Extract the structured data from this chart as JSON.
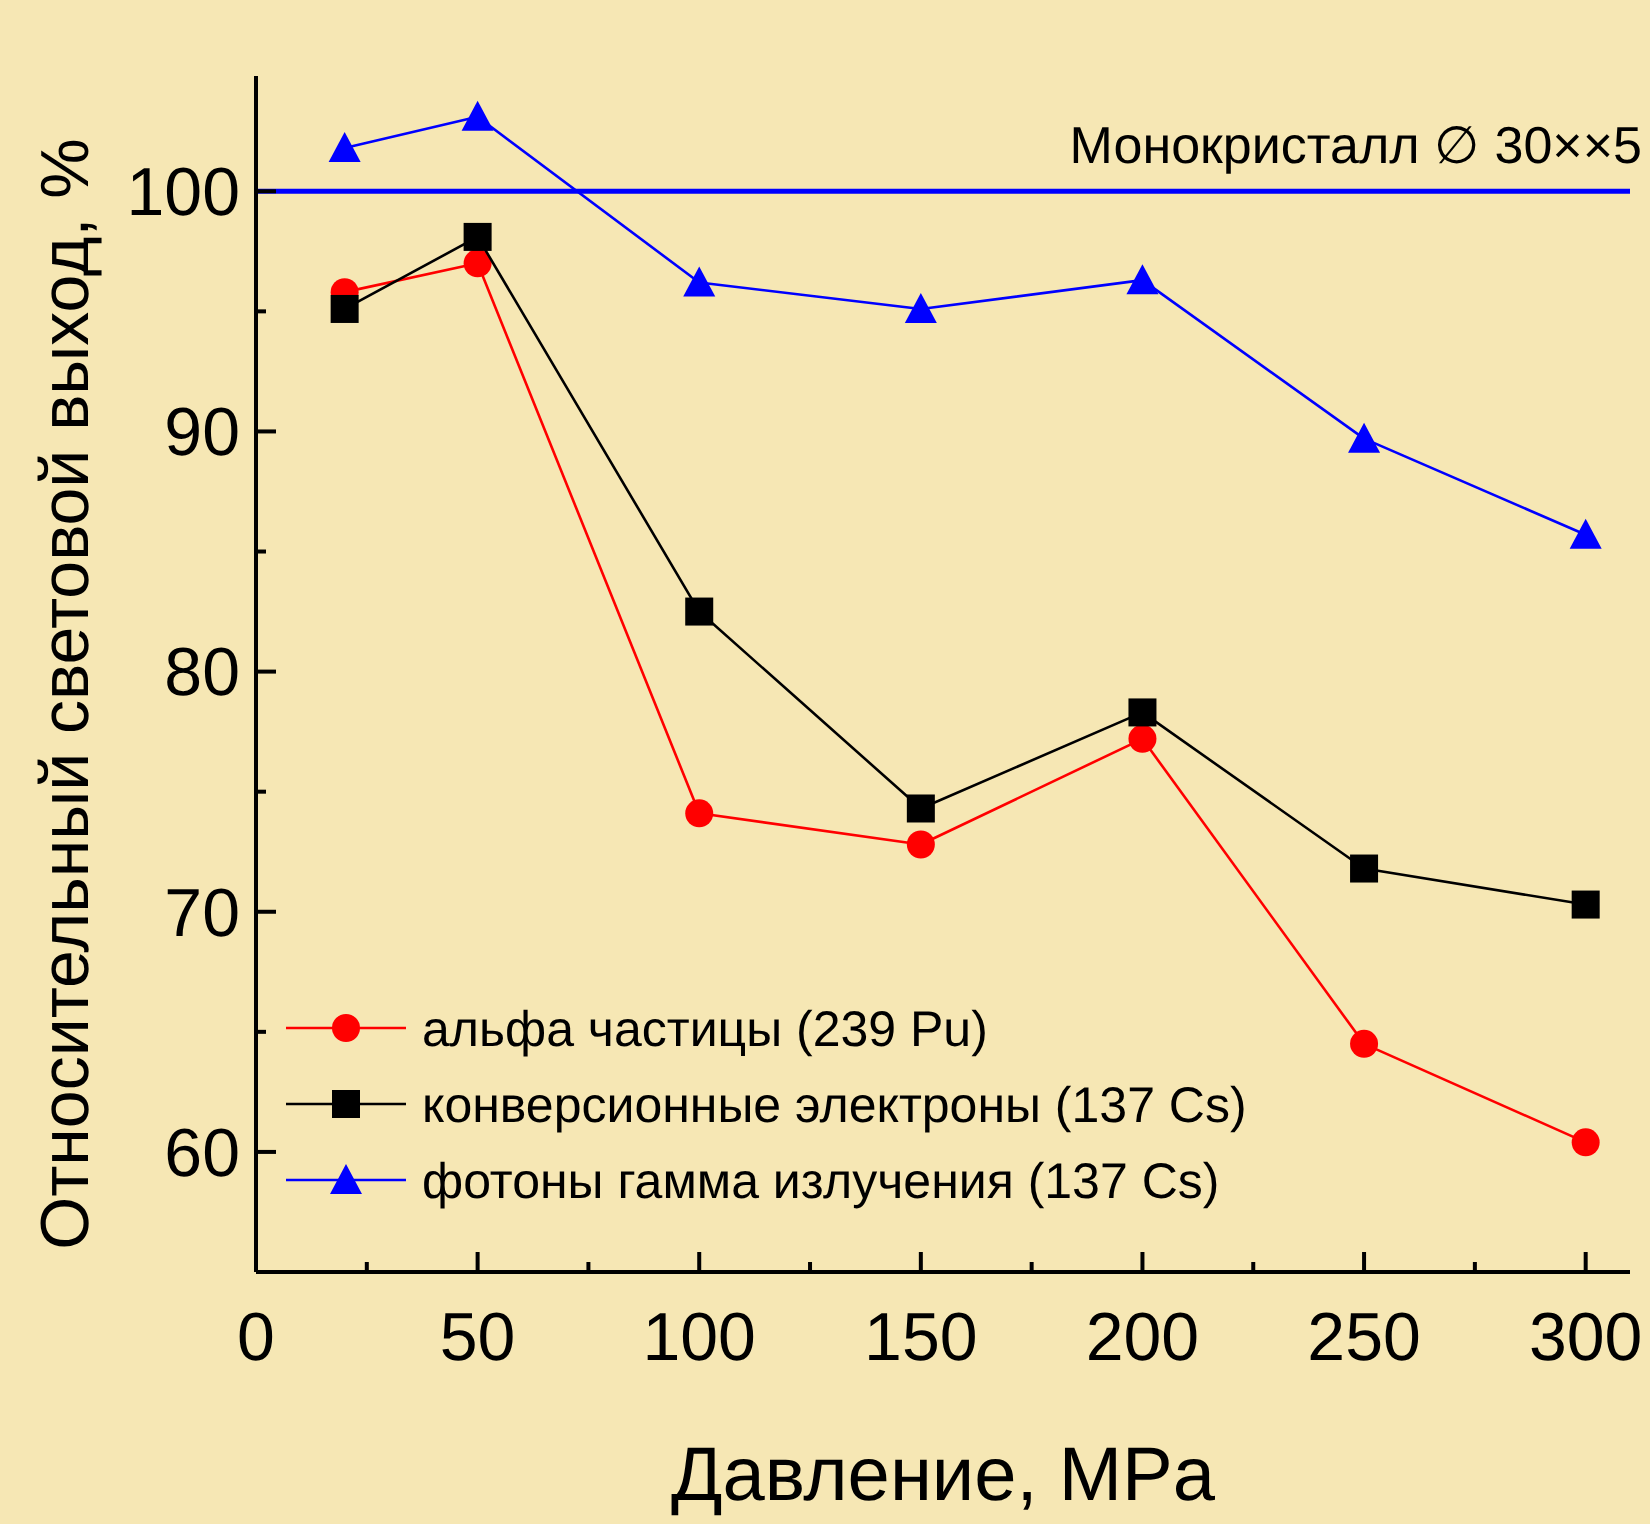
{
  "chart_data": {
    "type": "line",
    "xlabel": "Давление, MPa",
    "ylabel": "Относительный световой выход, %",
    "x": [
      20,
      50,
      100,
      150,
      200,
      250,
      300
    ],
    "xlim": [
      0,
      310
    ],
    "xticks": [
      0,
      50,
      100,
      150,
      200,
      250,
      300
    ],
    "ylim": [
      55,
      104.8
    ],
    "yticks": [
      60,
      70,
      80,
      90,
      100
    ],
    "series": [
      {
        "name": "альфа частицы (239 Pu)",
        "color": "#ff0000",
        "marker": "circle",
        "values": [
          95.8,
          97.0,
          74.1,
          72.8,
          77.2,
          64.5,
          60.4
        ]
      },
      {
        "name": "конверсионные электроны (137 Cs)",
        "color": "#000000",
        "marker": "square",
        "values": [
          95.1,
          98.1,
          82.5,
          74.3,
          78.3,
          71.8,
          70.3
        ]
      },
      {
        "name": "фотоны гамма излучения (137 Cs)",
        "color": "#0000ff",
        "marker": "triangle",
        "values": [
          101.8,
          103.1,
          96.2,
          95.1,
          96.3,
          89.7,
          85.7
        ]
      }
    ],
    "ref_lines": [
      {
        "axis": "y",
        "value": 100,
        "label": "Монокристалл ∅ 30××5",
        "color": "#0000ff"
      }
    ],
    "legend": "bottom left",
    "grid": false
  }
}
